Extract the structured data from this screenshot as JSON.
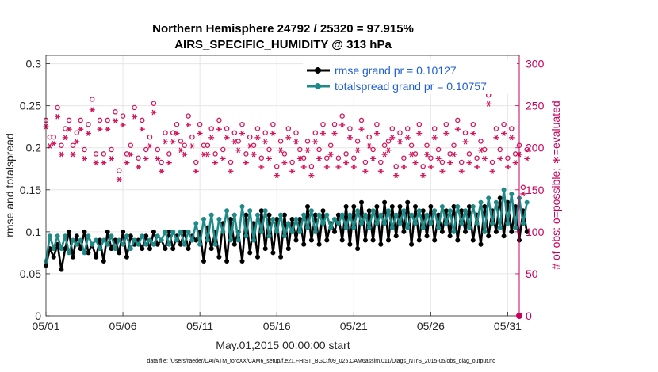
{
  "chart_data": {
    "type": "line",
    "title_line1": "Northern Hemisphere 24792 / 25320 = 97.915%",
    "title_line2": "AIRS_SPECIFIC_HUMIDITY @ 313 hPa",
    "xlabel": "May.01,2015 00:00:00 start",
    "ylabel_left": "rmse and totalspread",
    "ylabel_right": "# of obs: o=possible; ∗=evaluated",
    "footer": "data file: /Users/raeder/DAI/ATM_forcXX/CAM6_setup/f.e21.FHIST_BGC.f09_025.CAM6assim.011/Diags_NTrS_2015-05/obs_diag_output.nc",
    "x_ticks": [
      "05/01",
      "05/06",
      "05/11",
      "05/16",
      "05/21",
      "05/26",
      "05/31"
    ],
    "x_tick_values": [
      0,
      5,
      10,
      15,
      20,
      25,
      30
    ],
    "xlim": [
      0,
      30.75
    ],
    "y_left_ticks": [
      "0",
      "0.05",
      "0.1",
      "0.15",
      "0.2",
      "0.25",
      "0.3"
    ],
    "y_left_tick_values": [
      0,
      0.05,
      0.1,
      0.15,
      0.2,
      0.25,
      0.3
    ],
    "ylim_left": [
      0,
      0.31
    ],
    "y_right_ticks": [
      "0",
      "50",
      "100",
      "150",
      "200",
      "250",
      "300"
    ],
    "y_right_tick_values": [
      0,
      50,
      100,
      150,
      200,
      250,
      300
    ],
    "ylim_right": [
      0,
      310
    ],
    "grid": true,
    "legend_position": "top-right",
    "x_step": 0.25,
    "series": [
      {
        "name": "rmse grand pr = 0.10127",
        "color": "#000000",
        "axis": "left",
        "values": [
          0.06,
          0.08,
          0.07,
          0.085,
          0.055,
          0.08,
          0.1,
          0.07,
          0.095,
          0.08,
          0.1,
          0.075,
          0.085,
          0.07,
          0.09,
          0.065,
          0.1,
          0.08,
          0.09,
          0.075,
          0.1,
          0.07,
          0.095,
          0.085,
          0.09,
          0.08,
          0.095,
          0.08,
          0.1,
          0.085,
          0.09,
          0.08,
          0.1,
          0.08,
          0.095,
          0.085,
          0.1,
          0.08,
          0.095,
          0.09,
          0.1,
          0.065,
          0.105,
          0.08,
          0.1,
          0.07,
          0.11,
          0.065,
          0.115,
          0.085,
          0.1,
          0.065,
          0.12,
          0.075,
          0.11,
          0.07,
          0.125,
          0.08,
          0.12,
          0.075,
          0.115,
          0.07,
          0.12,
          0.08,
          0.115,
          0.09,
          0.115,
          0.085,
          0.13,
          0.09,
          0.12,
          0.085,
          0.125,
          0.09,
          0.11,
          0.1,
          0.12,
          0.09,
          0.13,
          0.085,
          0.13,
          0.08,
          0.135,
          0.09,
          0.125,
          0.09,
          0.13,
          0.085,
          0.135,
          0.09,
          0.13,
          0.095,
          0.13,
          0.1,
          0.135,
          0.085,
          0.13,
          0.09,
          0.125,
          0.095,
          0.13,
          0.09,
          0.12,
          0.1,
          0.125,
          0.095,
          0.13,
          0.09,
          0.125,
          0.1,
          0.13,
          0.09,
          0.12,
          0.085,
          0.13,
          0.095,
          0.125,
          0.1,
          0.14,
          0.095,
          0.135,
          0.1,
          0.13,
          0.09,
          0.125,
          0.1
        ]
      },
      {
        "name": "totalspread grand pr = 0.10757",
        "color": "#1f8a87",
        "axis": "left",
        "values": [
          0.065,
          0.095,
          0.08,
          0.095,
          0.08,
          0.095,
          0.075,
          0.09,
          0.085,
          0.09,
          0.075,
          0.095,
          0.085,
          0.09,
          0.08,
          0.09,
          0.085,
          0.095,
          0.08,
          0.09,
          0.085,
          0.095,
          0.08,
          0.09,
          0.085,
          0.095,
          0.085,
          0.09,
          0.085,
          0.095,
          0.09,
          0.1,
          0.085,
          0.1,
          0.09,
          0.1,
          0.085,
          0.1,
          0.09,
          0.11,
          0.085,
          0.115,
          0.09,
          0.12,
          0.085,
          0.115,
          0.1,
          0.125,
          0.09,
          0.12,
          0.09,
          0.13,
          0.095,
          0.125,
          0.09,
          0.12,
          0.1,
          0.125,
          0.095,
          0.115,
          0.1,
          0.12,
          0.095,
          0.11,
          0.1,
          0.115,
          0.1,
          0.12,
          0.105,
          0.125,
          0.1,
          0.12,
          0.11,
          0.12,
          0.105,
          0.115,
          0.11,
          0.12,
          0.105,
          0.12,
          0.105,
          0.125,
          0.11,
          0.12,
          0.105,
          0.125,
          0.11,
          0.12,
          0.11,
          0.125,
          0.105,
          0.12,
          0.11,
          0.125,
          0.105,
          0.12,
          0.11,
          0.125,
          0.105,
          0.12,
          0.11,
          0.125,
          0.105,
          0.13,
          0.11,
          0.125,
          0.1,
          0.13,
          0.11,
          0.125,
          0.105,
          0.13,
          0.11,
          0.135,
          0.1,
          0.14,
          0.11,
          0.135,
          0.105,
          0.15,
          0.11,
          0.145,
          0.105,
          0.14,
          0.11,
          0.135
        ]
      },
      {
        "name": "obs possible",
        "color": "#d4145a",
        "axis": "right",
        "marker": "circle",
        "values": [
          230,
          210,
          210,
          245,
          200,
          220,
          230,
          200,
          215,
          230,
          195,
          225,
          255,
          190,
          230,
          190,
          230,
          195,
          240,
          170,
          235,
          190,
          200,
          245,
          185,
          230,
          195,
          210,
          250,
          195,
          180,
          215,
          190,
          215,
          225,
          205,
          200,
          235,
          210,
          180,
          225,
          200,
          200,
          220,
          190,
          230,
          195,
          220,
          180,
          215,
          205,
          225,
          190,
          210,
          200,
          220,
          185,
          215,
          195,
          225,
          175,
          205,
          190,
          220,
          180,
          215,
          195,
          185,
          205,
          175,
          215,
          195,
          225,
          185,
          200,
          225,
          185,
          235,
          190,
          220,
          185,
          205,
          230,
          180,
          210,
          195,
          225,
          180,
          200,
          205,
          220,
          175,
          215,
          185,
          220,
          200,
          190,
          225,
          175,
          200,
          185,
          220,
          195,
          180,
          225,
          190,
          200,
          230,
          180,
          215,
          190,
          225,
          185,
          205,
          195,
          260,
          180,
          220,
          195,
          225,
          185,
          220,
          190,
          200,
          150,
          195
        ]
      },
      {
        "name": "obs evaluated",
        "color": "#d4145a",
        "axis": "right",
        "marker": "asterisk",
        "values": [
          228,
          205,
          208,
          240,
          195,
          215,
          225,
          195,
          210,
          225,
          190,
          220,
          248,
          185,
          225,
          185,
          225,
          190,
          235,
          165,
          230,
          185,
          195,
          240,
          180,
          225,
          190,
          205,
          245,
          190,
          175,
          210,
          185,
          210,
          220,
          200,
          195,
          230,
          205,
          175,
          220,
          195,
          195,
          215,
          185,
          225,
          190,
          215,
          175,
          210,
          200,
          220,
          185,
          205,
          195,
          215,
          180,
          210,
          190,
          220,
          170,
          200,
          185,
          215,
          175,
          210,
          190,
          180,
          200,
          170,
          210,
          190,
          220,
          180,
          195,
          220,
          180,
          230,
          185,
          215,
          180,
          200,
          225,
          175,
          205,
          190,
          220,
          175,
          195,
          200,
          215,
          170,
          210,
          180,
          215,
          195,
          185,
          220,
          170,
          195,
          180,
          215,
          190,
          175,
          220,
          185,
          195,
          225,
          175,
          210,
          185,
          220,
          180,
          200,
          190,
          255,
          175,
          215,
          190,
          220,
          180,
          215,
          185,
          195,
          148,
          190
        ]
      }
    ]
  }
}
